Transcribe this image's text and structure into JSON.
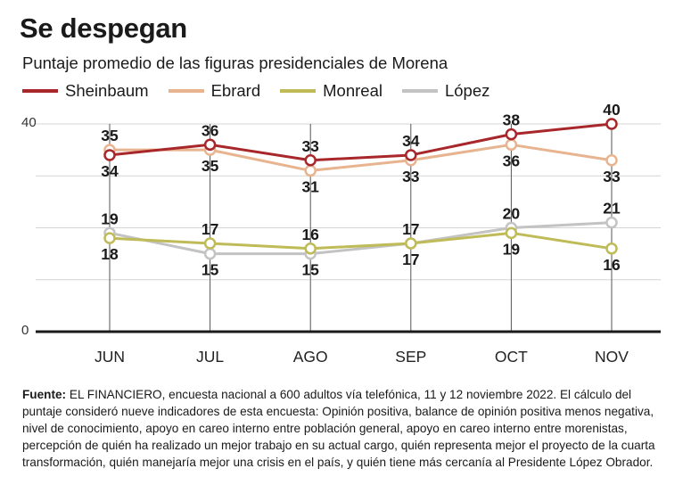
{
  "header": {
    "title": "Se despegan",
    "subtitle": "Puntaje promedio de las figuras presidenciales de Morena"
  },
  "legend": [
    {
      "label": "Sheinbaum",
      "color": "#a8272a"
    },
    {
      "label": "Ebrard",
      "color": "#e8b48f"
    },
    {
      "label": "Monreal",
      "color": "#bfbb57"
    },
    {
      "label": "López",
      "color": "#c3c3c3"
    }
  ],
  "chart_data": {
    "type": "line",
    "title": "Se despegan",
    "subtitle": "Puntaje promedio de las figuras presidenciales de Morena",
    "categories": [
      "JUN",
      "JUL",
      "AGO",
      "SEP",
      "OCT",
      "NOV"
    ],
    "ylim": [
      0,
      40
    ],
    "yticks": [
      0,
      40
    ],
    "grid": true,
    "legend_position": "top-left",
    "series": [
      {
        "name": "Sheinbaum",
        "color": "#a8272a",
        "values": [
          34,
          36,
          33,
          34,
          38,
          40
        ]
      },
      {
        "name": "Ebrard",
        "color": "#e8b48f",
        "values": [
          35,
          35,
          31,
          33,
          36,
          33
        ]
      },
      {
        "name": "Monreal",
        "color": "#bfbb57",
        "values": [
          18,
          17,
          16,
          17,
          19,
          16
        ]
      },
      {
        "name": "López",
        "color": "#c3c3c3",
        "values": [
          19,
          15,
          15,
          17,
          20,
          21
        ]
      }
    ]
  },
  "footnote": {
    "label": "Fuente:",
    "text": "EL FINANCIERO, encuesta nacional a 600 adultos vía telefónica, 11 y 12 noviembre 2022. El cálculo del puntaje consideró nueve indicadores de esta encuesta: Opinión positiva, balance de opinión positiva menos negativa, nivel de conocimiento, apoyo en careo interno entre población general, apoyo en careo interno entre morenistas, percepción de quién ha realizado un mejor trabajo en su actual cargo, quién representa mejor el proyecto de la cuarta transformación, quién manejaría mejor una crisis en el país, y quién tiene más cercanía al Presidente López Obrador."
  }
}
